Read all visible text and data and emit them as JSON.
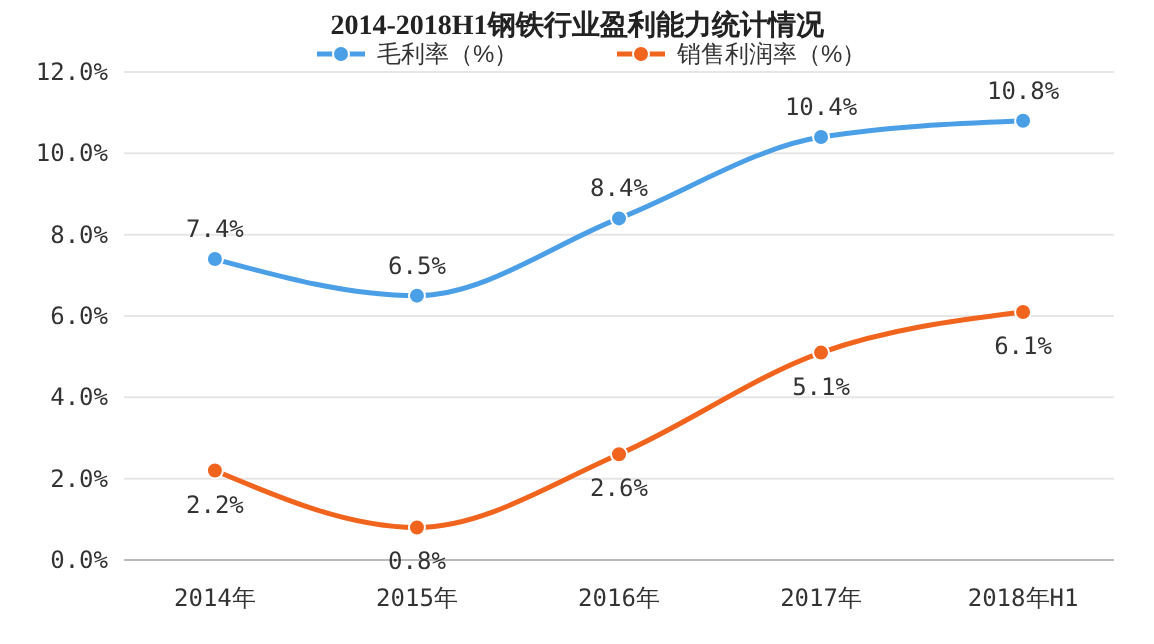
{
  "chart_data": {
    "type": "line",
    "title": "2014-2018H1钢铁行业盈利能力统计情况",
    "categories": [
      "2014年",
      "2015年",
      "2016年",
      "2017年",
      "2018年H1"
    ],
    "series": [
      {
        "name": "毛利率（%）",
        "color": "#4a9fe6",
        "values": [
          7.4,
          6.5,
          8.4,
          10.4,
          10.8
        ],
        "value_labels": [
          "7.4%",
          "6.5%",
          "8.4%",
          "10.4%",
          "10.8%"
        ]
      },
      {
        "name": "销售利润率（%）",
        "color": "#f0641e",
        "values": [
          2.2,
          0.8,
          2.6,
          5.1,
          6.1
        ],
        "value_labels": [
          "2.2%",
          "0.8%",
          "2.6%",
          "5.1%",
          "6.1%"
        ]
      }
    ],
    "ylim": [
      0,
      12
    ],
    "yticks": [
      {
        "value": 0,
        "label": "0.0%"
      },
      {
        "value": 2,
        "label": "2.0%"
      },
      {
        "value": 4,
        "label": "4.0%"
      },
      {
        "value": 6,
        "label": "6.0%"
      },
      {
        "value": 8,
        "label": "8.0%"
      },
      {
        "value": 10,
        "label": "10.0%"
      },
      {
        "value": 12,
        "label": "12.0%"
      }
    ],
    "grid": "y",
    "legend": "top",
    "marker": "circle",
    "line_style": "solid"
  }
}
